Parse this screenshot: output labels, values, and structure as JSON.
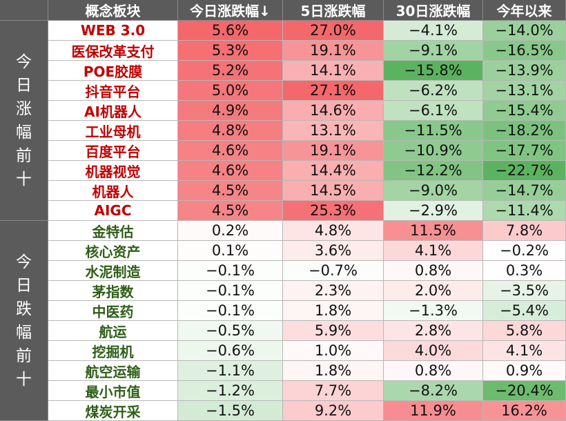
{
  "chart_data": {
    "type": "table",
    "columns": [
      "概念板块",
      "今日涨跌幅↓",
      "5日涨跌幅",
      "30日涨跌幅",
      "今年以来"
    ],
    "groups": [
      {
        "label": "今日涨幅前十",
        "direction": "up",
        "rows": [
          {
            "name": "WEB 3.0",
            "values": [
              "5.6%",
              "27.0%",
              "−4.1%",
              "−14.0%"
            ]
          },
          {
            "name": "医保改革支付",
            "values": [
              "5.3%",
              "19.1%",
              "−9.1%",
              "−16.5%"
            ]
          },
          {
            "name": "POE胶膜",
            "values": [
              "5.2%",
              "14.1%",
              "−15.8%",
              "−13.9%"
            ]
          },
          {
            "name": "抖音平台",
            "values": [
              "5.0%",
              "27.1%",
              "−6.2%",
              "−13.1%"
            ]
          },
          {
            "name": "AI机器人",
            "values": [
              "4.9%",
              "14.6%",
              "−6.1%",
              "−15.4%"
            ]
          },
          {
            "name": "工业母机",
            "values": [
              "4.8%",
              "13.1%",
              "−11.5%",
              "−18.2%"
            ]
          },
          {
            "name": "百度平台",
            "values": [
              "4.6%",
              "19.1%",
              "−10.9%",
              "−17.7%"
            ]
          },
          {
            "name": "机器视觉",
            "values": [
              "4.6%",
              "14.4%",
              "−12.2%",
              "−22.7%"
            ]
          },
          {
            "name": "机器人",
            "values": [
              "4.5%",
              "14.5%",
              "−9.0%",
              "−14.7%"
            ]
          },
          {
            "name": "AIGC",
            "values": [
              "4.5%",
              "25.3%",
              "−2.9%",
              "−11.4%"
            ]
          }
        ]
      },
      {
        "label": "今日跌幅前十",
        "direction": "down",
        "rows": [
          {
            "name": "金特估",
            "values": [
              "0.2%",
              "4.8%",
              "11.5%",
              "7.8%"
            ]
          },
          {
            "name": "核心资产",
            "values": [
              "0.1%",
              "3.6%",
              "4.1%",
              "−0.2%"
            ]
          },
          {
            "name": "水泥制造",
            "values": [
              "−0.1%",
              "−0.7%",
              "0.8%",
              "0.3%"
            ]
          },
          {
            "name": "茅指数",
            "values": [
              "−0.1%",
              "2.3%",
              "2.0%",
              "−3.5%"
            ]
          },
          {
            "name": "中医药",
            "values": [
              "−0.1%",
              "1.8%",
              "−1.3%",
              "−5.4%"
            ]
          },
          {
            "name": "航运",
            "values": [
              "−0.5%",
              "5.9%",
              "2.8%",
              "5.8%"
            ]
          },
          {
            "name": "挖掘机",
            "values": [
              "−0.6%",
              "1.0%",
              "4.0%",
              "4.1%"
            ]
          },
          {
            "name": "航空运输",
            "values": [
              "−1.1%",
              "1.8%",
              "0.8%",
              "0.9%"
            ]
          },
          {
            "name": "最小市值",
            "values": [
              "−1.2%",
              "7.7%",
              "−8.2%",
              "−20.4%"
            ]
          },
          {
            "name": "煤炭开采",
            "values": [
              "−1.5%",
              "9.2%",
              "11.9%",
              "16.2%"
            ]
          }
        ]
      }
    ],
    "colors": {
      "header": "#5b5b5b",
      "up_name": "#c00000",
      "down_name": "#2e5e17",
      "positive": "#f4676b",
      "negative": "#5cb35f"
    }
  }
}
